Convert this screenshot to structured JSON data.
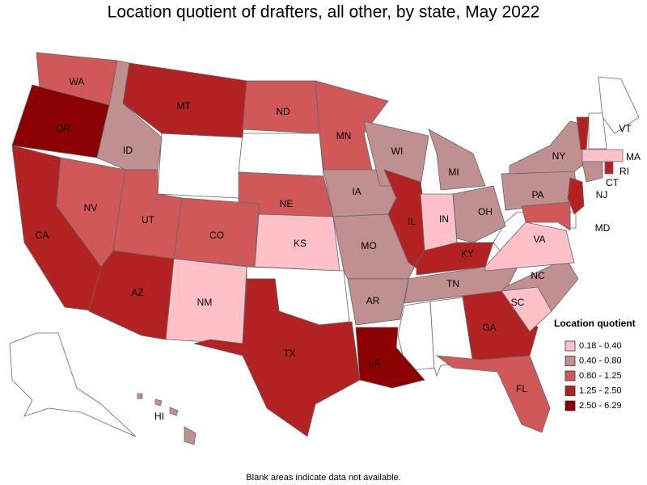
{
  "title": "Location quotient of drafters, all other, by state, May 2022",
  "legend": {
    "title": "Location quotient",
    "items": [
      {
        "label": "0.18 - 0.40",
        "color": "#ffc0c8"
      },
      {
        "label": "0.40 - 0.80",
        "color": "#c09090"
      },
      {
        "label": "0.80 - 1.25",
        "color": "#d05858"
      },
      {
        "label": "1.25 - 2.50",
        "color": "#b22222"
      },
      {
        "label": "2.50 - 6.29",
        "color": "#8b0000"
      }
    ]
  },
  "states": [
    {
      "label": "WA",
      "bin": 2
    },
    {
      "label": "OR",
      "bin": 4
    },
    {
      "label": "CA",
      "bin": 3
    },
    {
      "label": "NV",
      "bin": 2
    },
    {
      "label": "ID",
      "bin": 1
    },
    {
      "label": "MT",
      "bin": 3
    },
    {
      "label": "UT",
      "bin": 2
    },
    {
      "label": "AZ",
      "bin": 3
    },
    {
      "label": "CO",
      "bin": 2
    },
    {
      "label": "NM",
      "bin": 0
    },
    {
      "label": "ND",
      "bin": 2
    },
    {
      "label": "NE",
      "bin": 2
    },
    {
      "label": "KS",
      "bin": 0
    },
    {
      "label": "TX",
      "bin": 3
    },
    {
      "label": "MN",
      "bin": 2
    },
    {
      "label": "IA",
      "bin": 1
    },
    {
      "label": "MO",
      "bin": 1
    },
    {
      "label": "AR",
      "bin": 1
    },
    {
      "label": "LA",
      "bin": 4
    },
    {
      "label": "WI",
      "bin": 1
    },
    {
      "label": "IL",
      "bin": 3
    },
    {
      "label": "MI",
      "bin": 1
    },
    {
      "label": "IN",
      "bin": 0
    },
    {
      "label": "OH",
      "bin": 1
    },
    {
      "label": "KY",
      "bin": 3
    },
    {
      "label": "TN",
      "bin": 1
    },
    {
      "label": "GA",
      "bin": 3
    },
    {
      "label": "FL",
      "bin": 2
    },
    {
      "label": "SC",
      "bin": 0
    },
    {
      "label": "NC",
      "bin": 1
    },
    {
      "label": "VA",
      "bin": 0
    },
    {
      "label": "PA",
      "bin": 1
    },
    {
      "label": "NY",
      "bin": 1
    },
    {
      "label": "VT",
      "bin": 3
    },
    {
      "label": "MA",
      "bin": 0
    },
    {
      "label": "RI",
      "bin": 3
    },
    {
      "label": "CT",
      "bin": 1
    },
    {
      "label": "NJ",
      "bin": 3
    },
    {
      "label": "MD",
      "bin": 2
    },
    {
      "label": "HI",
      "bin": 1
    }
  ],
  "footnote": "Blank areas indicate data not available."
}
